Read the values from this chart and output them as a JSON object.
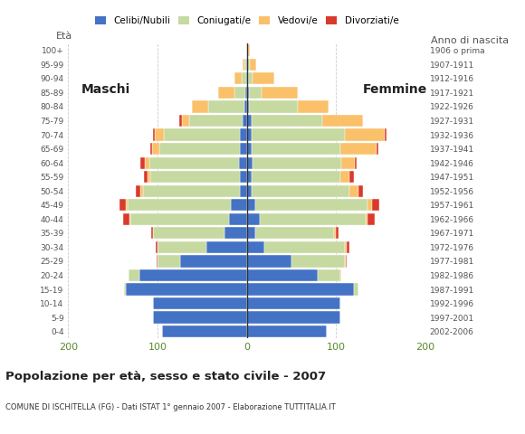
{
  "age_groups": [
    "0-4",
    "5-9",
    "10-14",
    "15-19",
    "20-24",
    "25-29",
    "30-34",
    "35-39",
    "40-44",
    "45-49",
    "50-54",
    "55-59",
    "60-64",
    "65-69",
    "70-74",
    "75-79",
    "80-84",
    "85-89",
    "90-94",
    "95-99",
    "100+"
  ],
  "birth_years": [
    "2002-2006",
    "1997-2001",
    "1992-1996",
    "1987-1991",
    "1982-1986",
    "1977-1981",
    "1972-1976",
    "1967-1971",
    "1962-1966",
    "1957-1961",
    "1952-1956",
    "1947-1951",
    "1942-1946",
    "1937-1941",
    "1932-1936",
    "1927-1931",
    "1922-1926",
    "1917-1921",
    "1912-1916",
    "1907-1911",
    "1906 o prima"
  ],
  "males": {
    "celibe": [
      95,
      105,
      105,
      135,
      120,
      75,
      45,
      25,
      20,
      18,
      8,
      8,
      9,
      8,
      8,
      5,
      3,
      2,
      1,
      1,
      0
    ],
    "coniugato": [
      0,
      0,
      0,
      3,
      12,
      25,
      55,
      80,
      110,
      115,
      108,
      100,
      100,
      90,
      85,
      60,
      40,
      12,
      5,
      2,
      0
    ],
    "vedovo": [
      0,
      0,
      0,
      0,
      0,
      0,
      0,
      0,
      1,
      2,
      3,
      3,
      5,
      8,
      10,
      8,
      18,
      18,
      8,
      2,
      0
    ],
    "divorziato": [
      0,
      0,
      0,
      0,
      0,
      1,
      2,
      2,
      8,
      8,
      5,
      4,
      5,
      2,
      2,
      3,
      0,
      0,
      0,
      0,
      0
    ]
  },
  "females": {
    "celibe": [
      90,
      105,
      105,
      120,
      80,
      50,
      20,
      10,
      15,
      10,
      5,
      5,
      6,
      5,
      5,
      5,
      2,
      2,
      1,
      0,
      0
    ],
    "coniugato": [
      0,
      0,
      0,
      5,
      25,
      60,
      90,
      88,
      118,
      125,
      110,
      100,
      100,
      100,
      105,
      80,
      55,
      15,
      5,
      3,
      1
    ],
    "vedovo": [
      0,
      0,
      0,
      0,
      1,
      1,
      2,
      2,
      2,
      5,
      10,
      10,
      15,
      40,
      45,
      45,
      35,
      40,
      25,
      8,
      2
    ],
    "divorziato": [
      0,
      0,
      0,
      0,
      0,
      1,
      3,
      3,
      8,
      8,
      5,
      5,
      2,
      2,
      2,
      0,
      0,
      0,
      0,
      0,
      0
    ]
  },
  "colors": {
    "celibe": "#4472c4",
    "coniugato": "#c5d9a0",
    "vedovo": "#fac06a",
    "divorziato": "#d93a2b"
  },
  "legend_labels": [
    "Celibi/Nubili",
    "Coniugati/e",
    "Vedovi/e",
    "Divorziati/e"
  ],
  "title": "Popolazione per età, sesso e stato civile - 2007",
  "subtitle": "COMUNE DI ISCHITELLA (FG) - Dati ISTAT 1° gennaio 2007 - Elaborazione TUTTITALIA.IT",
  "label_maschi": "Maschi",
  "label_femmine": "Femmine",
  "label_eta": "Età",
  "label_anno": "Anno di nascita",
  "xlim": 200,
  "background_color": "#ffffff",
  "grid_color": "#cccccc",
  "axis_label_color": "#5a8a2a",
  "text_color": "#555555",
  "bar_edge_color": "white"
}
